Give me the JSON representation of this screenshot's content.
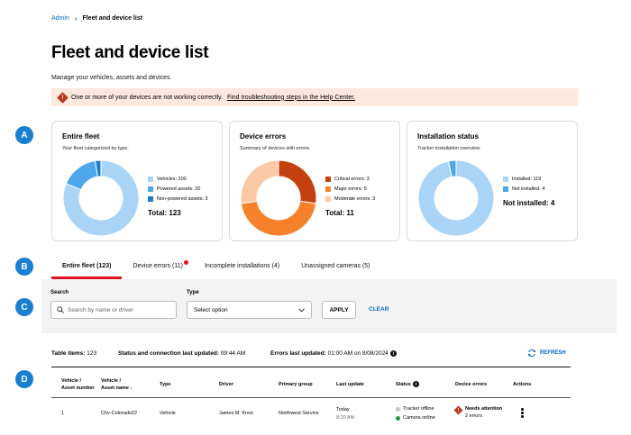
{
  "breadcrumb": {
    "root": "Admin",
    "current": "Fleet and device list"
  },
  "page": {
    "title": "Fleet and device list",
    "subtitle": "Manage your vehicles, assets and devices."
  },
  "alert": {
    "text": "One or more of your devices are not working correctly.",
    "link": "Find troubleshooting steps in the Help Center."
  },
  "markers": [
    "A",
    "B",
    "C",
    "D"
  ],
  "cards": {
    "fleet": {
      "title": "Entire fleet",
      "desc": "Your fleet categorized by type.",
      "legend": [
        "Vehicles: 100",
        "Powered assets: 20",
        "Non-powered assets: 3"
      ],
      "total": "Total: 123"
    },
    "errors": {
      "title": "Device errors",
      "desc": "Summary of devices with errors.",
      "legend": [
        "Critical errors: 3",
        "Major errors: 5",
        "Moderate errors: 3"
      ],
      "total": "Total: 11"
    },
    "install": {
      "title": "Installation status",
      "desc": "Tracker installation overview.",
      "legend": [
        "Installed: 119",
        "Not installed: 4"
      ],
      "total": "Not installed: 4"
    }
  },
  "chart_data": [
    {
      "type": "pie",
      "categories": [
        "Vehicles",
        "Powered assets",
        "Non-powered assets"
      ],
      "values": [
        100,
        20,
        3
      ],
      "colors": [
        "#a9d4f5",
        "#4ea6ea",
        "#1a7fd1"
      ]
    },
    {
      "type": "pie",
      "categories": [
        "Critical errors",
        "Major errors",
        "Moderate errors"
      ],
      "values": [
        3,
        5,
        3
      ],
      "colors": [
        "#c4410f",
        "#f5822a",
        "#fbc9a6"
      ]
    },
    {
      "type": "pie",
      "categories": [
        "Installed",
        "Not installed"
      ],
      "values": [
        119,
        4
      ],
      "colors": [
        "#a9d4f5",
        "#4ea6ea"
      ]
    }
  ],
  "tabs": [
    "Entire fleet (123)",
    "Device errors (11)",
    "Incomplete installations (4)",
    "Unassigned cameras (5)"
  ],
  "filters": {
    "search_label": "Search",
    "search_placeholder": "Search by name or driver",
    "type_label": "Type",
    "type_value": "Select option",
    "apply": "APPLY",
    "clear": "CLEAR"
  },
  "table_meta": {
    "items_label": "Table items:",
    "items_value": "123",
    "status_label": "Status and connection last updated:",
    "status_value": "09:44 AM",
    "errors_label": "Errors last updated:",
    "errors_value": "01:00 AM on 8/08/2024",
    "refresh": "REFRESH"
  },
  "table": {
    "headers": {
      "vehicle_num_1": "Vehicle /",
      "vehicle_num_2": "Asset number",
      "vehicle_name_1": "Vehicle /",
      "vehicle_name_2": "Asset name",
      "type": "Type",
      "driver": "Driver",
      "group": "Primary group",
      "last_update": "Last update",
      "status": "Status",
      "errors": "Device errors",
      "actions": "Actions"
    },
    "row": {
      "number": "1",
      "name": "Chv-Colorado22",
      "type": "Vehicle",
      "driver": "James M. Knox",
      "group": "Northwest Service",
      "update_day": "Today",
      "update_time": "8:20 AM",
      "status_1": "Tracker offline",
      "status_2": "Camera online",
      "error_title": "Needs attention",
      "error_count": "2 errors"
    }
  }
}
